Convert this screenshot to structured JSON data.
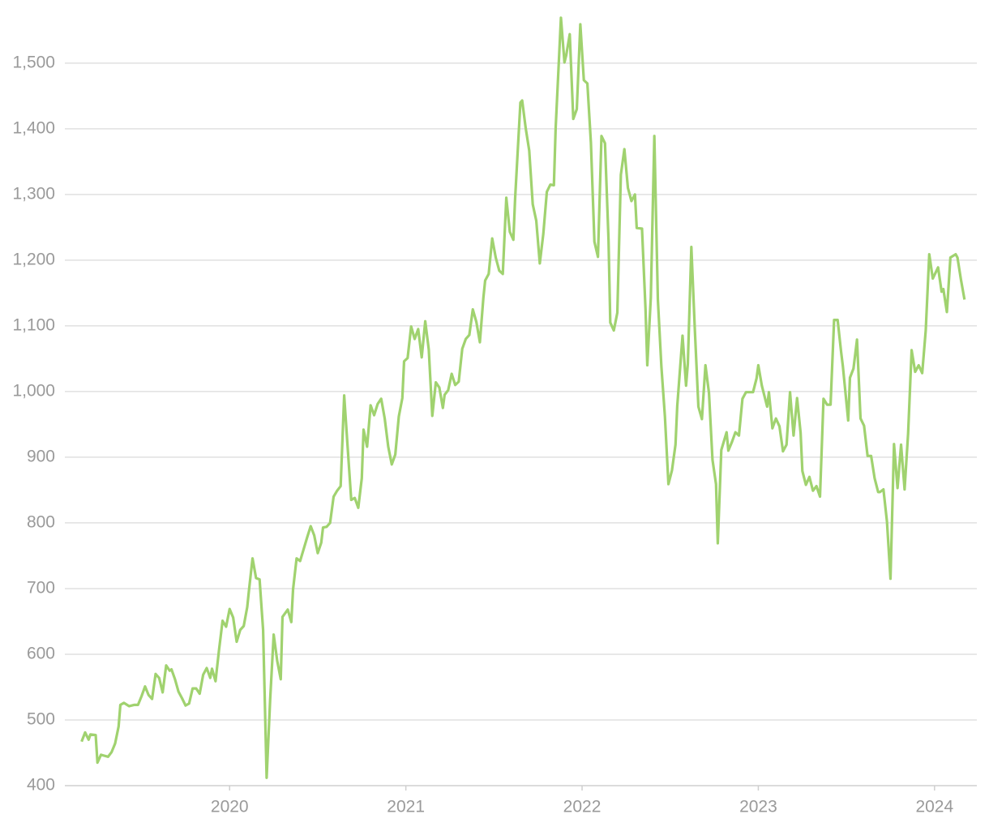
{
  "chart_data": {
    "type": "line",
    "x": [
      2019.16,
      2019.18,
      2019.2,
      2019.21,
      2019.24,
      2019.25,
      2019.27,
      2019.31,
      2019.33,
      2019.35,
      2019.37,
      2019.38,
      2019.4,
      2019.43,
      2019.46,
      2019.48,
      2019.5,
      2019.52,
      2019.54,
      2019.56,
      2019.58,
      2019.6,
      2019.62,
      2019.64,
      2019.66,
      2019.67,
      2019.69,
      2019.71,
      2019.73,
      2019.75,
      2019.77,
      2019.79,
      2019.81,
      2019.83,
      2019.85,
      2019.87,
      2019.89,
      2019.9,
      2019.92,
      2019.94,
      2019.96,
      2019.98,
      2020.0,
      2020.02,
      2020.04,
      2020.06,
      2020.08,
      2020.1,
      2020.11,
      2020.13,
      2020.15,
      2020.17,
      2020.19,
      2020.21,
      2020.23,
      2020.25,
      2020.27,
      2020.29,
      2020.3,
      2020.33,
      2020.35,
      2020.36,
      2020.38,
      2020.4,
      2020.42,
      2020.44,
      2020.46,
      2020.48,
      2020.5,
      2020.52,
      2020.53,
      2020.55,
      2020.57,
      2020.59,
      2020.61,
      2020.63,
      2020.65,
      2020.67,
      2020.69,
      2020.71,
      2020.73,
      2020.75,
      2020.76,
      2020.78,
      2020.8,
      2020.82,
      2020.84,
      2020.86,
      2020.88,
      2020.9,
      2020.92,
      2020.94,
      2020.96,
      2020.98,
      2020.99,
      2021.01,
      2021.03,
      2021.05,
      2021.07,
      2021.09,
      2021.11,
      2021.13,
      2021.15,
      2021.17,
      2021.19,
      2021.21,
      2021.22,
      2021.24,
      2021.26,
      2021.28,
      2021.3,
      2021.32,
      2021.34,
      2021.36,
      2021.38,
      2021.4,
      2021.42,
      2021.44,
      2021.45,
      2021.47,
      2021.49,
      2021.51,
      2021.53,
      2021.55,
      2021.57,
      2021.59,
      2021.61,
      2021.62,
      2021.65,
      2021.66,
      2021.68,
      2021.7,
      2021.72,
      2021.74,
      2021.76,
      2021.78,
      2021.8,
      2021.82,
      2021.84,
      2021.85,
      2021.88,
      2021.9,
      2021.91,
      2021.93,
      2021.95,
      2021.97,
      2021.99,
      2022.01,
      2022.03,
      2022.05,
      2022.07,
      2022.09,
      2022.11,
      2022.13,
      2022.15,
      2022.16,
      2022.18,
      2022.2,
      2022.22,
      2022.24,
      2022.26,
      2022.28,
      2022.3,
      2022.31,
      2022.34,
      2022.36,
      2022.37,
      2022.39,
      2022.41,
      2022.43,
      2022.45,
      2022.47,
      2022.49,
      2022.51,
      2022.53,
      2022.54,
      2022.57,
      2022.59,
      2022.6,
      2022.62,
      2022.64,
      2022.66,
      2022.68,
      2022.7,
      2022.72,
      2022.74,
      2022.76,
      2022.77,
      2022.79,
      2022.82,
      2022.83,
      2022.85,
      2022.87,
      2022.89,
      2022.91,
      2022.93,
      2022.95,
      2022.97,
      2022.99,
      2023.0,
      2023.02,
      2023.05,
      2023.06,
      2023.08,
      2023.1,
      2023.12,
      2023.14,
      2023.16,
      2023.18,
      2023.2,
      2023.22,
      2023.24,
      2023.25,
      2023.27,
      2023.29,
      2023.31,
      2023.33,
      2023.35,
      2023.37,
      2023.39,
      2023.41,
      2023.43,
      2023.45,
      2023.47,
      2023.48,
      2023.51,
      2023.52,
      2023.54,
      2023.56,
      2023.58,
      2023.6,
      2023.62,
      2023.64,
      2023.66,
      2023.68,
      2023.69,
      2023.71,
      2023.73,
      2023.75,
      2023.77,
      2023.79,
      2023.81,
      2023.83,
      2023.85,
      2023.87,
      2023.89,
      2023.91,
      2023.93,
      2023.95,
      2023.97,
      2023.99,
      2024.02,
      2024.04,
      2024.05,
      2024.07,
      2024.09,
      2024.12,
      2024.13,
      2024.15,
      2024.17
    ],
    "series": [
      {
        "color": "#a0d26f",
        "values": [
          467,
          481,
          470,
          478,
          477,
          435,
          447,
          444,
          451,
          464,
          490,
          523,
          526,
          521,
          523,
          523,
          536,
          551,
          538,
          532,
          570,
          564,
          542,
          583,
          575,
          577,
          562,
          543,
          533,
          522,
          525,
          548,
          548,
          540,
          569,
          579,
          564,
          578,
          559,
          607,
          651,
          642,
          669,
          656,
          619,
          637,
          643,
          672,
          698,
          746,
          716,
          714,
          637,
          412,
          531,
          630,
          590,
          562,
          657,
          668,
          649,
          699,
          746,
          742,
          760,
          778,
          795,
          781,
          754,
          770,
          793,
          794,
          800,
          840,
          849,
          856,
          994,
          914,
          835,
          838,
          823,
          868,
          942,
          916,
          979,
          964,
          981,
          989,
          959,
          916,
          889,
          904,
          962,
          990,
          1046,
          1051,
          1099,
          1080,
          1095,
          1052,
          1107,
          1064,
          963,
          1014,
          1006,
          975,
          995,
          1002,
          1027,
          1010,
          1015,
          1065,
          1080,
          1086,
          1125,
          1106,
          1075,
          1143,
          1169,
          1179,
          1233,
          1204,
          1184,
          1179,
          1295,
          1243,
          1231,
          1294,
          1440,
          1443,
          1401,
          1367,
          1285,
          1260,
          1195,
          1240,
          1304,
          1315,
          1314,
          1401,
          1569,
          1501,
          1512,
          1544,
          1415,
          1430,
          1559,
          1474,
          1469,
          1379,
          1228,
          1205,
          1389,
          1378,
          1231,
          1105,
          1093,
          1120,
          1330,
          1369,
          1310,
          1290,
          1300,
          1249,
          1248,
          1125,
          1040,
          1143,
          1389,
          1140,
          1038,
          962,
          859,
          880,
          919,
          978,
          1085,
          1009,
          1042,
          1220,
          1093,
          977,
          958,
          1040,
          998,
          896,
          859,
          769,
          911,
          938,
          910,
          923,
          938,
          933,
          989,
          999,
          999,
          999,
          1020,
          1040,
          1009,
          977,
          999,
          944,
          959,
          947,
          909,
          919,
          999,
          933,
          990,
          937,
          879,
          858,
          870,
          849,
          856,
          840,
          989,
          980,
          980,
          1109,
          1109,
          1060,
          1038,
          956,
          1021,
          1035,
          1079,
          959,
          948,
          902,
          902,
          868,
          847,
          847,
          851,
          802,
          715,
          920,
          853,
          919,
          851,
          936,
          1063,
          1030,
          1040,
          1028,
          1093,
          1209,
          1172,
          1189,
          1152,
          1156,
          1121,
          1204,
          1209,
          1204,
          1170,
          1140
        ]
      }
    ],
    "xlim": [
      2019.065,
      2024.24
    ],
    "xticks": [
      2020,
      2021,
      2022,
      2023,
      2024
    ],
    "ylim": [
      400,
      1580
    ],
    "yticks": [
      400,
      500,
      600,
      700,
      800,
      900,
      {
        "value": 1000,
        "label": "1,000"
      },
      {
        "value": 1100,
        "label": "1,100"
      },
      {
        "value": 1200,
        "label": "1,200"
      },
      {
        "value": 1300,
        "label": "1,300"
      },
      {
        "value": 1400,
        "label": "1,400"
      },
      {
        "value": 1500,
        "label": "1,500"
      }
    ],
    "grid": true
  }
}
